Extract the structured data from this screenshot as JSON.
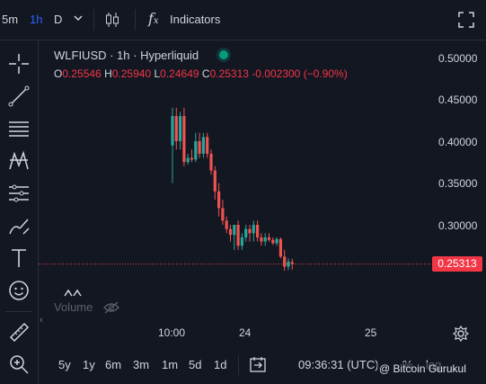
{
  "topbar": {
    "intervals": [
      "5m",
      "1h",
      "D"
    ],
    "active_interval": "1h",
    "indicators_label": "Indicators"
  },
  "legend": {
    "title": "WLFIUSD · 1h · Hyperliquid",
    "open_key": "O",
    "open": "0.25546",
    "high_key": "H",
    "high": "0.25940",
    "low_key": "L",
    "low": "0.24649",
    "close_key": "C",
    "close": "0.25313",
    "change": "-0.002300 (−0.90%)"
  },
  "price_axis": {
    "ticks": [
      "0.50000",
      "0.45000",
      "0.40000",
      "0.35000",
      "0.30000"
    ],
    "current_price": "0.25313"
  },
  "time_axis": {
    "ticks": [
      "10:00",
      "24",
      "25"
    ]
  },
  "volume_label": "Volume",
  "bottombar": {
    "ranges": [
      "5y",
      "1y",
      "6m",
      "3m",
      "1m",
      "5d",
      "1d"
    ],
    "clock": "09:36:31 (UTC)",
    "percent": "%",
    "log": "log"
  },
  "watermark": "@ Bitcoin Gurukul",
  "colors": {
    "up": "#26a69a",
    "down": "#ef5350",
    "accent": "#2962ff",
    "bg": "#131722"
  },
  "chart_data": {
    "type": "candlestick",
    "symbol": "WLFIUSD",
    "ylim": [
      0.24,
      0.52
    ],
    "candles": [
      {
        "o": 0.395,
        "h": 0.44,
        "l": 0.35,
        "c": 0.43
      },
      {
        "o": 0.43,
        "h": 0.44,
        "l": 0.39,
        "c": 0.4
      },
      {
        "o": 0.4,
        "h": 0.435,
        "l": 0.39,
        "c": 0.43
      },
      {
        "o": 0.43,
        "h": 0.44,
        "l": 0.37,
        "c": 0.375
      },
      {
        "o": 0.375,
        "h": 0.385,
        "l": 0.372,
        "c": 0.38
      },
      {
        "o": 0.38,
        "h": 0.39,
        "l": 0.375,
        "c": 0.378
      },
      {
        "o": 0.378,
        "h": 0.41,
        "l": 0.375,
        "c": 0.4
      },
      {
        "o": 0.4,
        "h": 0.41,
        "l": 0.38,
        "c": 0.385
      },
      {
        "o": 0.385,
        "h": 0.41,
        "l": 0.38,
        "c": 0.405
      },
      {
        "o": 0.405,
        "h": 0.41,
        "l": 0.38,
        "c": 0.385
      },
      {
        "o": 0.385,
        "h": 0.39,
        "l": 0.36,
        "c": 0.365
      },
      {
        "o": 0.365,
        "h": 0.37,
        "l": 0.33,
        "c": 0.34
      },
      {
        "o": 0.34,
        "h": 0.35,
        "l": 0.31,
        "c": 0.32
      },
      {
        "o": 0.32,
        "h": 0.33,
        "l": 0.3,
        "c": 0.305
      },
      {
        "o": 0.305,
        "h": 0.31,
        "l": 0.29,
        "c": 0.295
      },
      {
        "o": 0.295,
        "h": 0.3,
        "l": 0.28,
        "c": 0.288
      },
      {
        "o": 0.288,
        "h": 0.3,
        "l": 0.27,
        "c": 0.3
      },
      {
        "o": 0.3,
        "h": 0.305,
        "l": 0.27,
        "c": 0.275
      },
      {
        "o": 0.275,
        "h": 0.29,
        "l": 0.27,
        "c": 0.285
      },
      {
        "o": 0.285,
        "h": 0.3,
        "l": 0.28,
        "c": 0.295
      },
      {
        "o": 0.295,
        "h": 0.3,
        "l": 0.28,
        "c": 0.29
      },
      {
        "o": 0.29,
        "h": 0.305,
        "l": 0.28,
        "c": 0.3
      },
      {
        "o": 0.3,
        "h": 0.305,
        "l": 0.28,
        "c": 0.285
      },
      {
        "o": 0.285,
        "h": 0.29,
        "l": 0.275,
        "c": 0.28
      },
      {
        "o": 0.28,
        "h": 0.29,
        "l": 0.275,
        "c": 0.285
      },
      {
        "o": 0.285,
        "h": 0.29,
        "l": 0.28,
        "c": 0.282
      },
      {
        "o": 0.282,
        "h": 0.285,
        "l": 0.276,
        "c": 0.278
      },
      {
        "o": 0.278,
        "h": 0.285,
        "l": 0.275,
        "c": 0.283
      },
      {
        "o": 0.283,
        "h": 0.285,
        "l": 0.26,
        "c": 0.262
      },
      {
        "o": 0.262,
        "h": 0.27,
        "l": 0.245,
        "c": 0.25
      },
      {
        "o": 0.25,
        "h": 0.26,
        "l": 0.246,
        "c": 0.256
      },
      {
        "o": 0.2555,
        "h": 0.2594,
        "l": 0.2465,
        "c": 0.2531
      }
    ]
  }
}
